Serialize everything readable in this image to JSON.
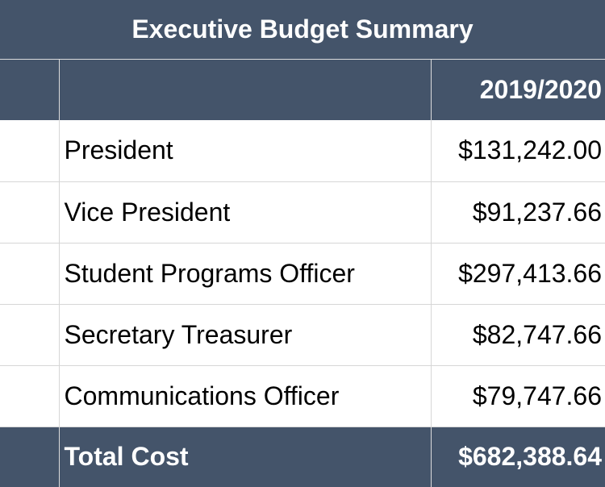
{
  "table": {
    "title": "Executive Budget Summary",
    "column_header": "2019/2020",
    "rows": [
      {
        "label": "President",
        "amount": "$131,242.00"
      },
      {
        "label": "Vice President",
        "amount": "$91,237.66"
      },
      {
        "label": "Student Programs Officer",
        "amount": "$297,413.66"
      },
      {
        "label": "Secretary Treasurer",
        "amount": "$82,747.66"
      },
      {
        "label": "Communications Officer",
        "amount": "$79,747.66"
      }
    ],
    "total": {
      "label": "Total Cost",
      "amount": "$682,388.64"
    }
  },
  "colors": {
    "header_background": "#44546a",
    "header_text": "#ffffff",
    "body_background": "#ffffff",
    "gridline": "#d6d6d6"
  }
}
